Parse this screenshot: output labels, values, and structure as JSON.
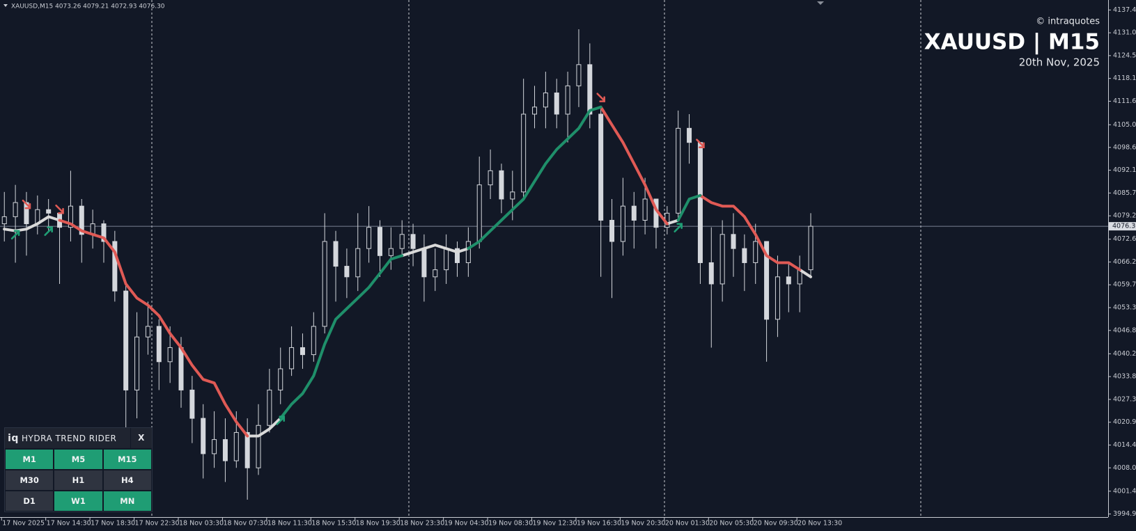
{
  "chart_data": {
    "type": "candlestick",
    "symbol_info": "XAUUSD,M15  4073.26 4079.21 4072.93 4076.30",
    "watermark": {
      "credit": "© intraquotes",
      "symbol": "XAUUSD | M15",
      "date": "20th Nov, 2025"
    },
    "categories": [
      "17 Nov 2025",
      null,
      null,
      null,
      "17 Nov 14:30",
      null,
      null,
      null,
      "17 Nov 18:30",
      null,
      null,
      null,
      "17 Nov 22:30",
      null,
      null,
      null,
      "18 Nov 03:30",
      null,
      null,
      null,
      "18 Nov 07:30",
      null,
      null,
      null,
      "18 Nov 11:30",
      null,
      null,
      null,
      "18 Nov 15:30",
      null,
      null,
      null,
      "18 Nov 19:30",
      null,
      null,
      null,
      "18 Nov 23:30",
      null,
      null,
      null,
      "19 Nov 04:30",
      null,
      null,
      null,
      "19 Nov 08:30",
      null,
      null,
      null,
      "19 Nov 12:30",
      null,
      null,
      null,
      "19 Nov 16:30",
      null,
      null,
      null,
      "19 Nov 20:30",
      null,
      null,
      null,
      "20 Nov 01:30",
      null,
      null,
      null,
      "20 Nov 05:30",
      null,
      null,
      null,
      "20 Nov 09:30",
      null,
      null,
      null,
      "20 Nov 13:30",
      null
    ],
    "candle_color": "#d4d7dc",
    "open": [
      4077,
      4079,
      4083,
      4077,
      4081,
      4080,
      4076,
      4082,
      4074,
      4077,
      4072,
      4058,
      4030,
      4045,
      4048,
      4038,
      4042,
      4030,
      4022,
      4012,
      4016,
      4010,
      4018,
      4008,
      4020,
      4030,
      4036,
      4042,
      4040,
      4048,
      4072,
      4065,
      4062,
      4070,
      4076,
      4068,
      4070,
      4074,
      4070,
      4062,
      4064,
      4070,
      4066,
      4072,
      4088,
      4092,
      4084,
      4086,
      4108,
      4110,
      4114,
      4108,
      4116,
      4122,
      4108,
      4078,
      4072,
      4082,
      4078,
      4084,
      4076,
      4080,
      4104,
      4100,
      4066,
      4060,
      4074,
      4070,
      4066,
      4072,
      4050,
      4062,
      4060,
      4064
    ],
    "high": [
      4086,
      4088,
      4086,
      4085,
      4084,
      4080,
      4092,
      4084,
      4081,
      4078,
      4075,
      4060,
      4052,
      4055,
      4050,
      4048,
      4045,
      4034,
      4026,
      4024,
      4022,
      4024,
      4022,
      4026,
      4036,
      4042,
      4048,
      4046,
      4052,
      4080,
      4075,
      4070,
      4080,
      4082,
      4078,
      4076,
      4078,
      4077,
      4074,
      4070,
      4074,
      4072,
      4076,
      4096,
      4098,
      4094,
      4092,
      4118,
      4116,
      4120,
      4118,
      4120,
      4132,
      4128,
      4110,
      4084,
      4090,
      4086,
      4090,
      4084,
      4082,
      4109,
      4108,
      4100,
      4076,
      4078,
      4080,
      4074,
      4077,
      4072,
      4068,
      4066,
      4068,
      4080
    ],
    "low": [
      4072,
      4066,
      4068,
      4074,
      4075,
      4060,
      4072,
      4066,
      4070,
      4066,
      4055,
      4015,
      4022,
      4040,
      4030,
      4032,
      4025,
      4015,
      4005,
      4008,
      4004,
      4008,
      3999,
      4006,
      4018,
      4026,
      4034,
      4036,
      4038,
      4046,
      4055,
      4056,
      4058,
      4066,
      4062,
      4064,
      4068,
      4065,
      4055,
      4058,
      4060,
      4062,
      4062,
      4070,
      4084,
      4080,
      4078,
      4084,
      4104,
      4104,
      4104,
      4100,
      4110,
      4104,
      4062,
      4056,
      4068,
      4070,
      4074,
      4070,
      4074,
      4078,
      4094,
      4060,
      4042,
      4055,
      4062,
      4058,
      4060,
      4038,
      4045,
      4052,
      4052,
      4062
    ],
    "close": [
      4079,
      4083,
      4077,
      4081,
      4080,
      4076,
      4082,
      4074,
      4077,
      4072,
      4058,
      4030,
      4045,
      4048,
      4038,
      4042,
      4030,
      4022,
      4012,
      4016,
      4010,
      4018,
      4008,
      4020,
      4030,
      4036,
      4042,
      4040,
      4048,
      4072,
      4065,
      4062,
      4070,
      4076,
      4068,
      4070,
      4074,
      4070,
      4062,
      4064,
      4070,
      4066,
      4072,
      4088,
      4092,
      4084,
      4086,
      4108,
      4110,
      4114,
      4108,
      4116,
      4122,
      4108,
      4078,
      4072,
      4082,
      4078,
      4084,
      4076,
      4080,
      4104,
      4100,
      4066,
      4060,
      4074,
      4070,
      4066,
      4072,
      4050,
      4062,
      4060,
      4064,
      4076.3
    ],
    "trend": [
      {
        "color": "#d9d9d9",
        "values": [
          4075.5,
          4075,
          4075.5,
          4077,
          4079,
          4078,
          null,
          null,
          null,
          null,
          null,
          null,
          null,
          null,
          null,
          null,
          null,
          null,
          null,
          null,
          null,
          null,
          4017,
          4017,
          4019,
          4022,
          null,
          null,
          null,
          null,
          null,
          null,
          null,
          null,
          null,
          null,
          4068,
          4069,
          4070,
          4071,
          4070,
          4069,
          4070,
          null,
          null,
          null,
          null,
          null,
          null,
          null,
          null,
          null,
          null,
          null,
          null,
          null,
          null,
          null,
          null,
          null,
          4077,
          4078,
          null,
          null,
          null,
          null,
          null,
          null,
          null,
          null,
          null,
          null,
          4064,
          4062
        ]
      },
      {
        "color": "#e05a55",
        "values": [
          null,
          null,
          null,
          null,
          null,
          4078,
          4077,
          4075,
          4074,
          4073,
          4069,
          4060,
          4056,
          4054,
          4051,
          4046,
          4042,
          4037,
          4033,
          4032,
          4026,
          4021,
          4017,
          null,
          null,
          null,
          null,
          null,
          null,
          null,
          null,
          null,
          null,
          null,
          null,
          null,
          null,
          null,
          null,
          null,
          null,
          null,
          null,
          null,
          null,
          null,
          null,
          null,
          null,
          null,
          null,
          null,
          null,
          null,
          4110,
          4105,
          4100,
          4094,
          4088,
          4081,
          4077,
          null,
          null,
          4085,
          4083,
          4082,
          4082,
          4079,
          4074,
          4068,
          4066,
          4066,
          4064,
          null
        ]
      },
      {
        "color": "#1f8f6a",
        "values": [
          null,
          null,
          null,
          null,
          null,
          null,
          null,
          null,
          null,
          null,
          null,
          null,
          null,
          null,
          null,
          null,
          null,
          null,
          null,
          null,
          null,
          null,
          null,
          null,
          null,
          4022,
          4026,
          4029,
          4034,
          4043,
          4050,
          4053,
          4056,
          4059,
          4063,
          4067,
          4068,
          null,
          null,
          null,
          null,
          null,
          4070,
          4072,
          4075,
          4078,
          4081,
          4084,
          4089,
          4094,
          4098,
          4101,
          4104,
          4109,
          4110,
          null,
          null,
          null,
          null,
          null,
          null,
          4078,
          4084,
          4085,
          null,
          null,
          null,
          null,
          null,
          null,
          null,
          null,
          null,
          null
        ]
      }
    ],
    "buy_signals": {
      "color": "#1f9d74",
      "values": [
        null,
        4074,
        null,
        null,
        4075,
        null,
        null,
        null,
        null,
        null,
        null,
        null,
        null,
        null,
        null,
        null,
        null,
        null,
        null,
        null,
        null,
        null,
        null,
        null,
        null,
        4021.5,
        null,
        null,
        null,
        null,
        null,
        null,
        null,
        null,
        null,
        null,
        null,
        null,
        null,
        null,
        null,
        null,
        null,
        null,
        null,
        null,
        null,
        null,
        null,
        null,
        null,
        null,
        null,
        null,
        null,
        null,
        null,
        null,
        null,
        null,
        null,
        4076,
        null,
        null,
        null,
        null,
        null,
        null,
        null,
        null,
        null,
        null,
        null,
        null
      ]
    },
    "sell_signals": {
      "color": "#e05a55",
      "values": [
        null,
        null,
        4082.4,
        null,
        null,
        4081,
        null,
        null,
        null,
        null,
        null,
        null,
        null,
        null,
        null,
        null,
        null,
        null,
        null,
        null,
        null,
        null,
        null,
        null,
        null,
        null,
        null,
        null,
        null,
        null,
        null,
        null,
        null,
        null,
        null,
        null,
        null,
        null,
        null,
        null,
        null,
        null,
        null,
        null,
        null,
        null,
        null,
        null,
        null,
        null,
        null,
        null,
        null,
        null,
        4112.6,
        null,
        null,
        null,
        null,
        null,
        null,
        null,
        null,
        4099.6,
        null,
        null,
        null,
        null,
        null,
        null,
        null,
        null,
        null,
        null
      ]
    },
    "last_price": {
      "value": 4076.3,
      "label": "4076.30"
    },
    "ylim": [
      3994.08,
      4140.27
    ],
    "yticks": [
      4137.45,
      {
        "value": 4131,
        "label": "4131.00"
      },
      4124.55,
      {
        "value": 4118.1,
        "label": "4118.10"
      },
      4111.65,
      {
        "value": 4105,
        "label": "4105.00"
      },
      {
        "value": 4098.6,
        "label": "4098.60"
      },
      4092.15,
      {
        "value": 4085.7,
        "label": "4085.70"
      },
      4079.25,
      4072.65,
      {
        "value": 4066.2,
        "label": "4066.20"
      },
      4059.75,
      {
        "value": 4053.3,
        "label": "4053.30"
      },
      4046.85,
      4040.25,
      {
        "value": 4033.8,
        "label": "4033.80"
      },
      4027.35,
      {
        "value": 4020.9,
        "label": "4020.90"
      },
      4014.45,
      {
        "value": 4008,
        "label": "4008.00"
      },
      {
        "value": 4001.4,
        "label": "4001.40"
      },
      3994.95
    ]
  },
  "panel": {
    "logo": "iq",
    "title": "HYDRA TREND RIDER",
    "close": "X",
    "buttons": [
      {
        "label": "M1",
        "active": true
      },
      {
        "label": "M5",
        "active": true
      },
      {
        "label": "M15",
        "active": true
      },
      {
        "label": "M30",
        "active": false
      },
      {
        "label": "H1",
        "active": false
      },
      {
        "label": "H4",
        "active": false
      },
      {
        "label": "D1",
        "active": false
      },
      {
        "label": "W1",
        "active": true
      },
      {
        "label": "MN",
        "active": true
      }
    ]
  }
}
